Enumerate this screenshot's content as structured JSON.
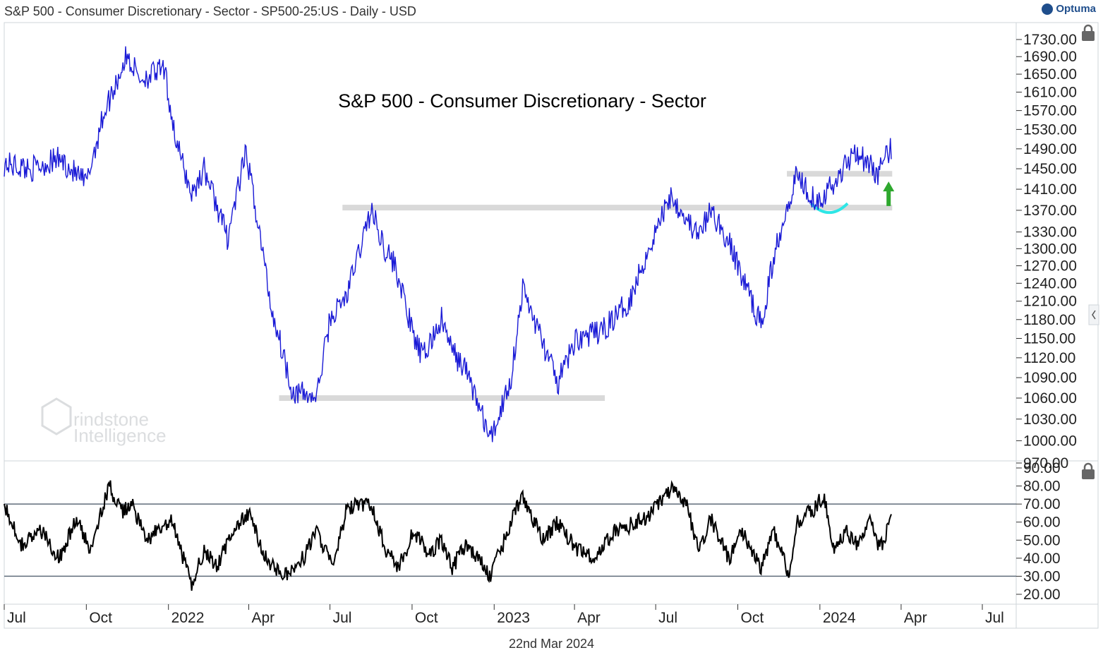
{
  "header": {
    "title": "S&P 500 - Consumer Discretionary - Sector - SP500-25:US - Daily - USD"
  },
  "brand": {
    "name": "Optuma"
  },
  "watermark": {
    "line1": "rindstone",
    "line2": "Intelligence"
  },
  "footer": {
    "date": "22nd Mar 2024"
  },
  "colors": {
    "price": "#1a1ad6",
    "rsi": "#000000",
    "support": "#d9d9d9",
    "rounding": "#2ee6e6",
    "arrow": "#2ea82e",
    "rsi_bands": "#5f6b7a"
  },
  "icons": [
    "lock-icon",
    "chevron-left-icon",
    "optuma-logo-icon"
  ],
  "chart_data": [
    {
      "type": "line",
      "title": "S&P 500 - Consumer Discretionary - Sector",
      "series": [
        {
          "x": [
            "2021-07-01",
            "2021-08-01",
            "2021-09-01",
            "2021-10-01",
            "2021-10-20",
            "2021-11-15",
            "2021-12-01",
            "2021-12-27",
            "2022-01-10",
            "2022-01-27",
            "2022-02-10",
            "2022-03-08",
            "2022-03-29",
            "2022-04-26",
            "2022-05-20",
            "2022-06-16",
            "2022-07-01",
            "2022-07-20",
            "2022-08-16",
            "2022-09-01",
            "2022-09-12",
            "2022-10-03",
            "2022-10-13",
            "2022-11-03",
            "2022-11-15",
            "2022-12-01",
            "2022-12-28",
            "2023-01-20",
            "2023-02-02",
            "2023-03-13",
            "2023-04-03",
            "2023-05-01",
            "2023-06-01",
            "2023-07-18",
            "2023-08-18",
            "2023-09-01",
            "2023-09-21",
            "2023-10-27",
            "2023-11-15",
            "2023-12-06",
            "2023-12-27",
            "2024-01-05",
            "2024-01-17",
            "2024-02-09",
            "2024-03-05",
            "2024-03-21"
          ],
          "values": [
            1460,
            1450,
            1470,
            1420,
            1560,
            1690,
            1640,
            1660,
            1500,
            1400,
            1450,
            1320,
            1480,
            1200,
            1070,
            1060,
            1180,
            1220,
            1370,
            1300,
            1270,
            1150,
            1120,
            1180,
            1130,
            1100,
            1000,
            1090,
            1230,
            1080,
            1150,
            1160,
            1210,
            1400,
            1320,
            1370,
            1310,
            1170,
            1320,
            1440,
            1390,
            1400,
            1420,
            1490,
            1440,
            1490
          ]
        }
      ],
      "ylim": [
        970,
        1740
      ],
      "ytick_labels": [
        "1730.00",
        "1690.00",
        "1650.00",
        "1610.00",
        "1570.00",
        "1530.00",
        "1490.00",
        "1450.00",
        "1410.00",
        "1370.00",
        "1330.00",
        "1300.00",
        "1270.00",
        "1240.00",
        "1210.00",
        "1180.00",
        "1150.00",
        "1120.00",
        "1090.00",
        "1060.00",
        "1030.00",
        "1000.00",
        "970.00"
      ],
      "scale": "log",
      "annotations": [
        {
          "kind": "support-line",
          "y": 1375,
          "x_start": "2022-07-15",
          "x_end": "2024-03-22"
        },
        {
          "kind": "support-line",
          "y": 1060,
          "x_start": "2022-05-05",
          "x_end": "2023-05-05"
        },
        {
          "kind": "support-line",
          "y": 1440,
          "x_start": "2023-11-25",
          "x_end": "2024-03-22"
        },
        {
          "kind": "rounded-bottom",
          "x_start": "2023-12-22",
          "x_end": "2024-02-01",
          "y": 1375
        },
        {
          "kind": "up-arrow",
          "x": "2024-03-18",
          "y_from": 1378,
          "y_to": 1425
        }
      ]
    },
    {
      "type": "line",
      "series": [
        {
          "x": [
            "2021-07-01",
            "2021-07-20",
            "2021-08-12",
            "2021-09-01",
            "2021-09-20",
            "2021-10-04",
            "2021-10-27",
            "2021-11-09",
            "2021-11-22",
            "2021-12-06",
            "2021-12-20",
            "2022-01-05",
            "2022-01-27",
            "2022-02-10",
            "2022-02-24",
            "2022-03-14",
            "2022-04-01",
            "2022-04-20",
            "2022-05-12",
            "2022-06-01",
            "2022-06-16",
            "2022-07-05",
            "2022-07-20",
            "2022-08-16",
            "2022-09-01",
            "2022-09-16",
            "2022-10-03",
            "2022-10-20",
            "2022-11-03",
            "2022-11-15",
            "2022-12-01",
            "2022-12-28",
            "2023-01-20",
            "2023-02-02",
            "2023-02-24",
            "2023-03-13",
            "2023-04-03",
            "2023-04-25",
            "2023-05-15",
            "2023-06-01",
            "2023-06-20",
            "2023-07-18",
            "2023-08-04",
            "2023-08-18",
            "2023-09-01",
            "2023-09-21",
            "2023-10-06",
            "2023-10-27",
            "2023-11-10",
            "2023-11-28",
            "2023-12-06",
            "2023-12-27",
            "2024-01-05",
            "2024-01-17",
            "2024-01-31",
            "2024-02-12",
            "2024-02-27",
            "2024-03-08",
            "2024-03-21"
          ],
          "values": [
            70,
            48,
            55,
            40,
            62,
            45,
            80,
            65,
            70,
            50,
            55,
            60,
            25,
            45,
            35,
            55,
            65,
            40,
            30,
            40,
            55,
            35,
            68,
            70,
            45,
            35,
            55,
            42,
            50,
            35,
            48,
            30,
            60,
            75,
            50,
            60,
            45,
            40,
            55,
            58,
            62,
            78,
            70,
            45,
            62,
            40,
            55,
            35,
            55,
            30,
            60,
            68,
            75,
            45,
            55,
            48,
            60,
            45,
            61
          ]
        }
      ],
      "ylim": [
        18,
        92
      ],
      "ytick_labels": [
        "90.00",
        "80.00",
        "70.00",
        "60.00",
        "50.00",
        "40.00",
        "30.00",
        "20.00"
      ],
      "reference_lines": [
        70,
        30
      ]
    }
  ],
  "x_axis": {
    "tick_labels": [
      "Jul",
      "Oct",
      "2022",
      "Apr",
      "Jul",
      "Oct",
      "2023",
      "Apr",
      "Jul",
      "Oct",
      "2024",
      "Apr",
      "Jul"
    ],
    "tick_dates": [
      "2021-07-01",
      "2021-10-01",
      "2022-01-01",
      "2022-04-01",
      "2022-07-01",
      "2022-10-01",
      "2023-01-01",
      "2023-04-01",
      "2023-07-01",
      "2023-10-01",
      "2024-01-01",
      "2024-04-01",
      "2024-07-01"
    ]
  }
}
